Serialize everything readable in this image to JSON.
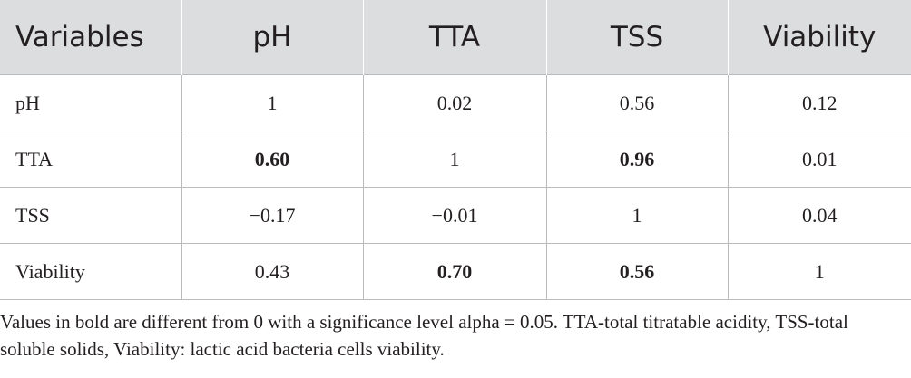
{
  "table": {
    "headers": [
      "Variables",
      "pH",
      "TTA",
      "TSS",
      "Viability"
    ],
    "rows": [
      {
        "label": "pH",
        "cells": [
          {
            "value": "1",
            "bold": false
          },
          {
            "value": "0.02",
            "bold": false
          },
          {
            "value": "0.56",
            "bold": false
          },
          {
            "value": "0.12",
            "bold": false
          }
        ]
      },
      {
        "label": "TTA",
        "cells": [
          {
            "value": "0.60",
            "bold": true
          },
          {
            "value": "1",
            "bold": false
          },
          {
            "value": "0.96",
            "bold": true
          },
          {
            "value": "0.01",
            "bold": false
          }
        ]
      },
      {
        "label": "TSS",
        "cells": [
          {
            "value": "−0.17",
            "bold": false
          },
          {
            "value": "−0.01",
            "bold": false
          },
          {
            "value": "1",
            "bold": false
          },
          {
            "value": "0.04",
            "bold": false
          }
        ]
      },
      {
        "label": "Viability",
        "cells": [
          {
            "value": "0.43",
            "bold": false
          },
          {
            "value": "0.70",
            "bold": true
          },
          {
            "value": "0.56",
            "bold": true
          },
          {
            "value": "1",
            "bold": false
          }
        ]
      }
    ]
  },
  "footnote": "Values in bold are different from 0 with a significance level alpha = 0.05. TTA-total titratable acidity, TSS-total soluble solids, Viability: lactic acid bacteria cells viability.",
  "colors": {
    "header_background": "#dcddde",
    "text": "#231f20",
    "rule": "#b9bbbd"
  }
}
